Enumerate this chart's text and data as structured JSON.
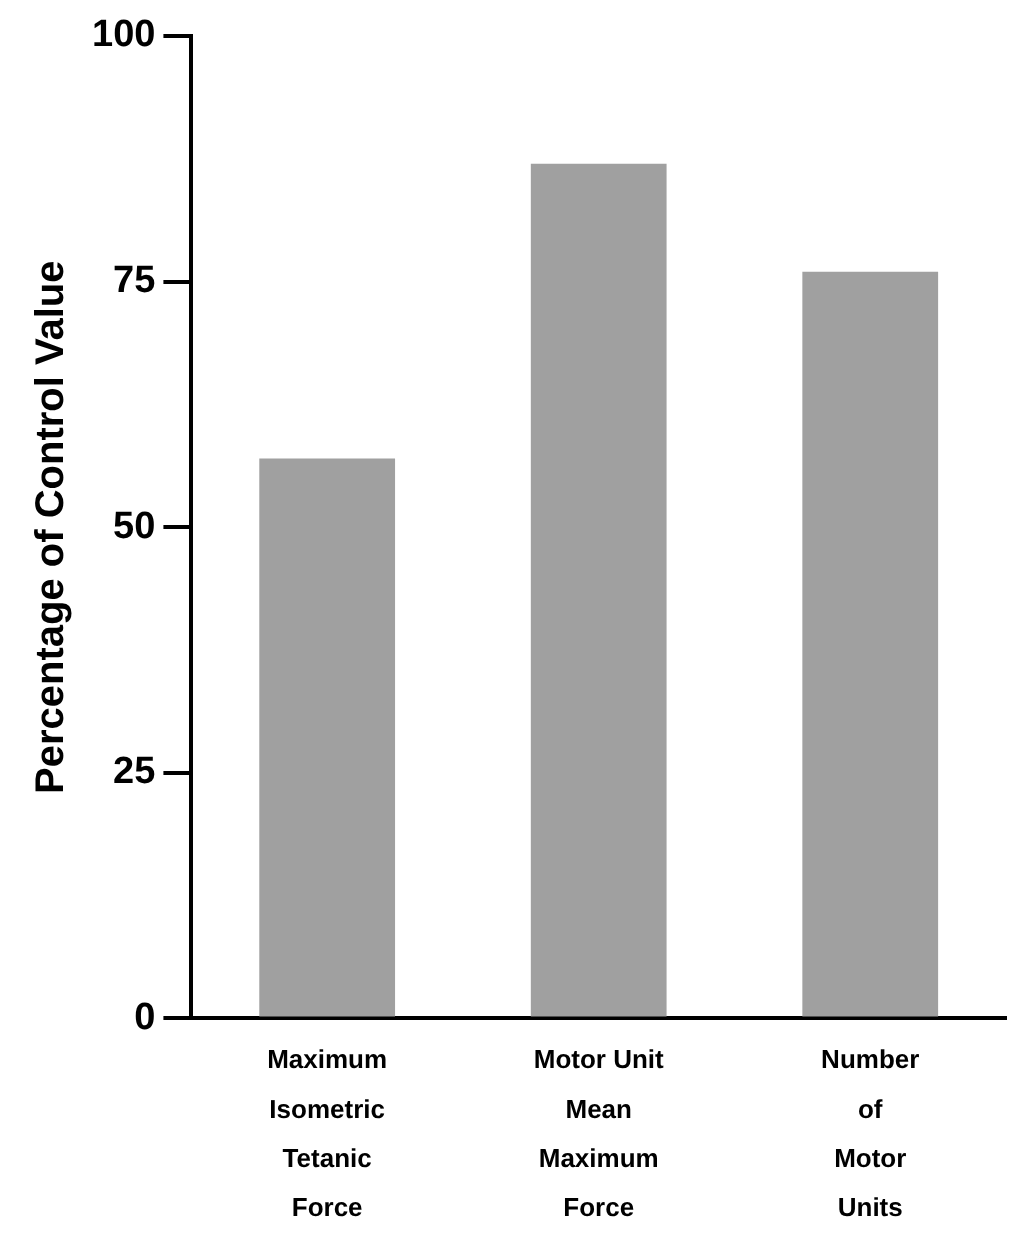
{
  "chart_data": {
    "type": "bar",
    "ylabel": "Percentage of Control Value",
    "categories": [
      "Maximum\nIsometric\nTetanic\nForce",
      "Motor Unit\nMean\nMaximum\nForce",
      "Number\nof\nMotor\nUnits"
    ],
    "values": [
      57,
      87,
      76
    ],
    "color": "#a0a0a0",
    "ylim": [
      0,
      100
    ],
    "yticks": [
      0,
      25,
      50,
      75,
      100
    ],
    "grid": false,
    "legend": false
  }
}
